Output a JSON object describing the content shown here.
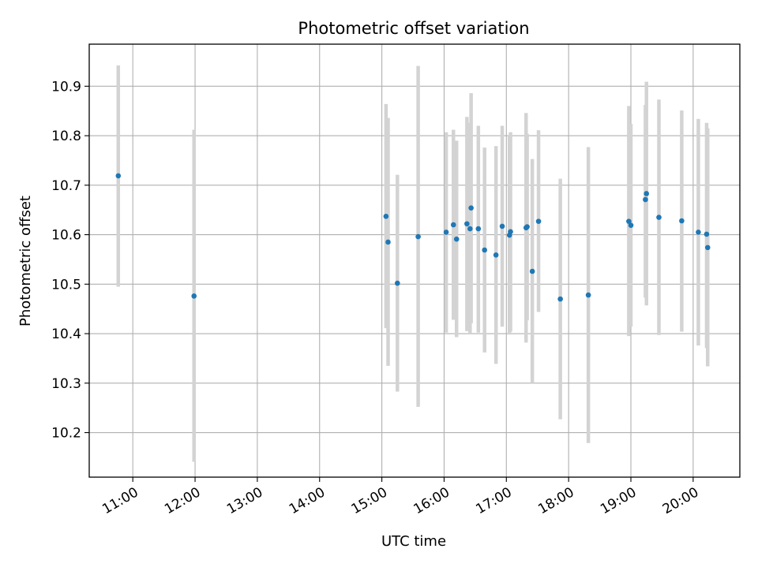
{
  "chart_data": {
    "type": "scatter",
    "title": "Photometric offset variation",
    "xlabel": "UTC time",
    "ylabel": "Photometric offset",
    "x_axis_type": "time",
    "xlim": [
      "10:18",
      "20:45"
    ],
    "ylim": [
      10.11,
      10.985
    ],
    "x_ticks": [
      "11:00",
      "12:00",
      "13:00",
      "14:00",
      "15:00",
      "16:00",
      "17:00",
      "18:00",
      "19:00",
      "20:00"
    ],
    "y_ticks": [
      "10.2",
      "10.3",
      "10.4",
      "10.5",
      "10.6",
      "10.7",
      "10.8",
      "10.9"
    ],
    "grid": true,
    "marker_color": "#1f77b4",
    "errorbar_color": "#d3d3d3",
    "series": [
      {
        "points": [
          {
            "time": "10:46",
            "y": 10.719,
            "err_low": 10.495,
            "err_high": 10.942
          },
          {
            "time": "11:59",
            "y": 10.476,
            "err_low": 10.141,
            "err_high": 10.812
          },
          {
            "time": "15:04",
            "y": 10.637,
            "err_low": 10.411,
            "err_high": 10.864
          },
          {
            "time": "15:06",
            "y": 10.585,
            "err_low": 10.335,
            "err_high": 10.836
          },
          {
            "time": "15:15",
            "y": 10.502,
            "err_low": 10.283,
            "err_high": 10.721
          },
          {
            "time": "15:35",
            "y": 10.596,
            "err_low": 10.252,
            "err_high": 10.941
          },
          {
            "time": "16:02",
            "y": 10.605,
            "err_low": 10.402,
            "err_high": 10.807
          },
          {
            "time": "16:09",
            "y": 10.62,
            "err_low": 10.428,
            "err_high": 10.812
          },
          {
            "time": "16:12",
            "y": 10.591,
            "err_low": 10.393,
            "err_high": 10.79
          },
          {
            "time": "16:22",
            "y": 10.622,
            "err_low": 10.405,
            "err_high": 10.838
          },
          {
            "time": "16:25",
            "y": 10.612,
            "err_low": 10.4,
            "err_high": 10.826
          },
          {
            "time": "16:26",
            "y": 10.654,
            "err_low": 10.421,
            "err_high": 10.886
          },
          {
            "time": "16:33",
            "y": 10.612,
            "err_low": 10.402,
            "err_high": 10.82
          },
          {
            "time": "16:39",
            "y": 10.569,
            "err_low": 10.362,
            "err_high": 10.776
          },
          {
            "time": "16:50",
            "y": 10.559,
            "err_low": 10.339,
            "err_high": 10.779
          },
          {
            "time": "16:56",
            "y": 10.617,
            "err_low": 10.414,
            "err_high": 10.82
          },
          {
            "time": "17:03",
            "y": 10.599,
            "err_low": 10.398,
            "err_high": 10.8
          },
          {
            "time": "17:04",
            "y": 10.606,
            "err_low": 10.404,
            "err_high": 10.807
          },
          {
            "time": "17:19",
            "y": 10.614,
            "err_low": 10.382,
            "err_high": 10.846
          },
          {
            "time": "17:20",
            "y": 10.616,
            "err_low": 10.427,
            "err_high": 10.804
          },
          {
            "time": "17:25",
            "y": 10.526,
            "err_low": 10.3,
            "err_high": 10.753
          },
          {
            "time": "17:31",
            "y": 10.627,
            "err_low": 10.444,
            "err_high": 10.811
          },
          {
            "time": "17:52",
            "y": 10.47,
            "err_low": 10.227,
            "err_high": 10.713
          },
          {
            "time": "18:19",
            "y": 10.478,
            "err_low": 10.179,
            "err_high": 10.777
          },
          {
            "time": "18:58",
            "y": 10.627,
            "err_low": 10.395,
            "err_high": 10.86
          },
          {
            "time": "19:00",
            "y": 10.619,
            "err_low": 10.414,
            "err_high": 10.824
          },
          {
            "time": "19:14",
            "y": 10.671,
            "err_low": 10.473,
            "err_high": 10.862
          },
          {
            "time": "19:15",
            "y": 10.683,
            "err_low": 10.457,
            "err_high": 10.909
          },
          {
            "time": "19:27",
            "y": 10.635,
            "err_low": 10.397,
            "err_high": 10.873
          },
          {
            "time": "19:49",
            "y": 10.628,
            "err_low": 10.404,
            "err_high": 10.851
          },
          {
            "time": "20:05",
            "y": 10.605,
            "err_low": 10.376,
            "err_high": 10.834
          },
          {
            "time": "20:13",
            "y": 10.601,
            "err_low": 10.371,
            "err_high": 10.826
          },
          {
            "time": "20:14",
            "y": 10.574,
            "err_low": 10.334,
            "err_high": 10.815
          }
        ]
      }
    ]
  }
}
